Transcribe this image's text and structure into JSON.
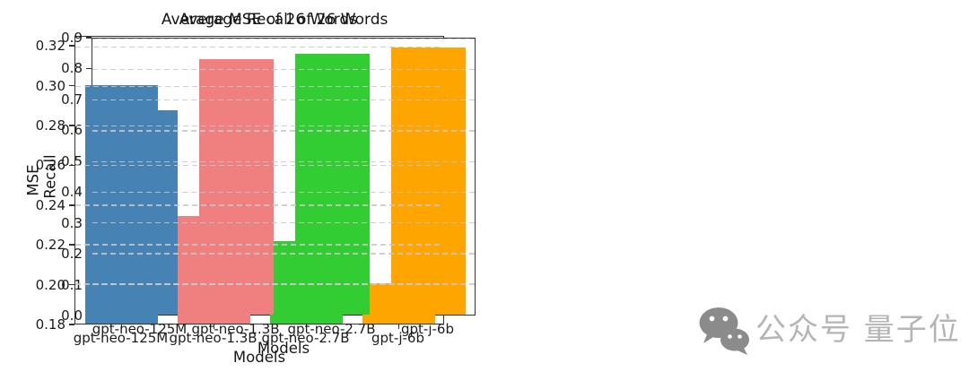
{
  "chart_data": [
    {
      "type": "bar",
      "title": "Average MSE of 26 Words",
      "xlabel": "Models",
      "ylabel": "MSE",
      "categories": [
        "gpt-neo-125M",
        "gpt-neo-1.3B",
        "gpt-neo-2.7B",
        "gpt-j-6b"
      ],
      "values": [
        0.3005,
        0.2345,
        0.2215,
        0.2005
      ],
      "bar_colors": [
        "#4682B4",
        "#F08080",
        "#32CD32",
        "#FFA500"
      ],
      "ylim": [
        0.18,
        0.325
      ],
      "yticks": [
        "0.18",
        "0.20",
        "0.22",
        "0.24",
        "0.26",
        "0.28",
        "0.30",
        "0.32"
      ],
      "grid": "horizontal dashed, drawn over bars",
      "legend": "none",
      "bar_width_frac": 0.78
    },
    {
      "type": "bar",
      "title": "Average Recall of 26 Words",
      "xlabel": "Models",
      "ylabel": "Recall",
      "categories": [
        "gpt-neo-125M",
        "gpt-neo-1.3B",
        "gpt-neo-2.7B",
        "gpt-j-6b"
      ],
      "values": [
        0.665,
        0.8335,
        0.849,
        0.871
      ],
      "bar_colors": [
        "#4682B4",
        "#F08080",
        "#32CD32",
        "#FFA500"
      ],
      "ylim": [
        0.0,
        0.9
      ],
      "yticks": [
        "0.0",
        "0.1",
        "0.2",
        "0.3",
        "0.4",
        "0.5",
        "0.6",
        "0.7",
        "0.8",
        "0.9"
      ],
      "grid": "horizontal dashed, drawn over bars",
      "legend": "none",
      "bar_width_frac": 0.78
    }
  ],
  "watermark": {
    "icon": "wechat-icon",
    "text": "公众号 量子位",
    "color": "#a9a9a9"
  },
  "style": {
    "background": "#ffffff",
    "spine_color": "#333333",
    "grid_color": "#c7c7c7",
    "text_color": "#1a1a1a"
  }
}
